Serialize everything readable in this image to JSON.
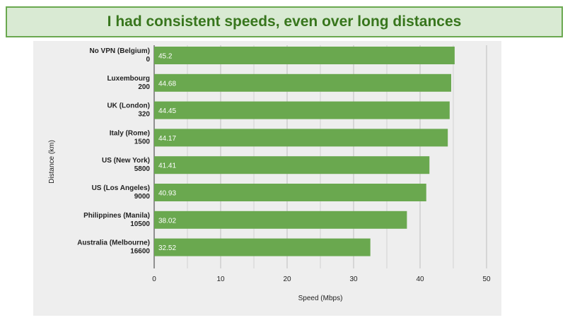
{
  "page": {
    "title": "I had consistent speeds, even over long distances",
    "colors": {
      "banner_bg": "#d9ead3",
      "banner_border": "#6aa84f",
      "title": "#38761d",
      "bar": "#6aa84f",
      "panel": "#eeeeee"
    }
  },
  "chart_data": {
    "type": "bar",
    "orientation": "horizontal",
    "title": "I had consistent speeds, even over long distances",
    "xlabel": "Speed (Mbps)",
    "ylabel": "Distance (km)",
    "xlim": [
      0,
      50
    ],
    "xticks": [
      "0",
      "10",
      "20",
      "30",
      "40",
      "50"
    ],
    "grid": true,
    "categories": [
      {
        "name": "No VPN (Belgium)",
        "distance": "0"
      },
      {
        "name": "Luxembourg",
        "distance": "200"
      },
      {
        "name": "UK (London)",
        "distance": "320"
      },
      {
        "name": "Italy (Rome)",
        "distance": "1500"
      },
      {
        "name": "US (New York)",
        "distance": "5800"
      },
      {
        "name": "US (Los Angeles)",
        "distance": "9000"
      },
      {
        "name": "Philippines (Manila)",
        "distance": "10500"
      },
      {
        "name": "Australia (Melbourne)",
        "distance": "16600"
      }
    ],
    "values": [
      45.2,
      44.68,
      44.45,
      44.17,
      41.41,
      40.93,
      38.02,
      32.52
    ],
    "value_labels": [
      "45.2",
      "44.68",
      "44.45",
      "44.17",
      "41.41",
      "40.93",
      "38.02",
      "32.52"
    ],
    "bar_color": "#6aa84f"
  }
}
